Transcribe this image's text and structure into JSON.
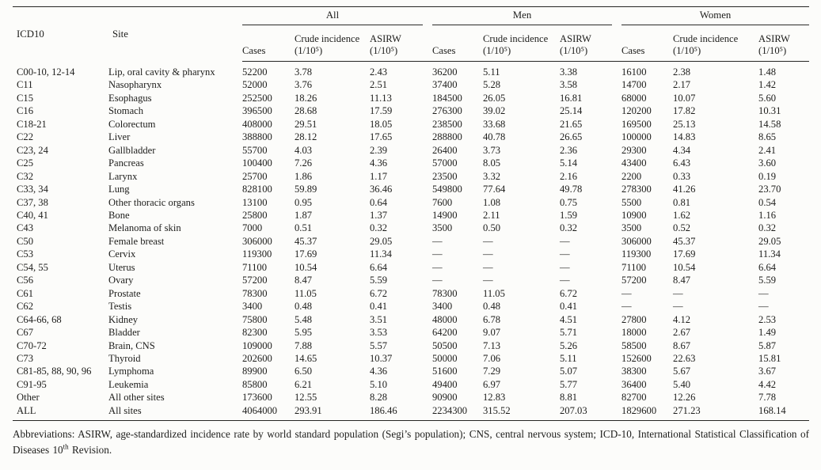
{
  "table": {
    "header": {
      "icd10": "ICD10",
      "site": "Site",
      "groups": [
        "All",
        "Men",
        "Women"
      ],
      "cases": "Cases",
      "crude_label": "Crude incidence",
      "asirw_label": "ASIRW",
      "unit": "(1/10⁵)"
    },
    "rows": [
      {
        "icd10": "C00-10, 12-14",
        "site": "Lip, oral cavity & pharynx",
        "values": [
          "52200",
          "3.78",
          "2.43",
          "36200",
          "5.11",
          "3.38",
          "16100",
          "2.38",
          "1.48"
        ]
      },
      {
        "icd10": "C11",
        "site": "Nasopharynx",
        "values": [
          "52000",
          "3.76",
          "2.51",
          "37400",
          "5.28",
          "3.58",
          "14700",
          "2.17",
          "1.42"
        ]
      },
      {
        "icd10": "C15",
        "site": "Esophagus",
        "values": [
          "252500",
          "18.26",
          "11.13",
          "184500",
          "26.05",
          "16.81",
          "68000",
          "10.07",
          "5.60"
        ]
      },
      {
        "icd10": "C16",
        "site": "Stomach",
        "values": [
          "396500",
          "28.68",
          "17.59",
          "276300",
          "39.02",
          "25.14",
          "120200",
          "17.82",
          "10.31"
        ]
      },
      {
        "icd10": "C18-21",
        "site": "Colorectum",
        "values": [
          "408000",
          "29.51",
          "18.05",
          "238500",
          "33.68",
          "21.65",
          "169500",
          "25.13",
          "14.58"
        ]
      },
      {
        "icd10": "C22",
        "site": "Liver",
        "values": [
          "388800",
          "28.12",
          "17.65",
          "288800",
          "40.78",
          "26.65",
          "100000",
          "14.83",
          "8.65"
        ]
      },
      {
        "icd10": "C23, 24",
        "site": "Gallbladder",
        "values": [
          "55700",
          "4.03",
          "2.39",
          "26400",
          "3.73",
          "2.36",
          "29300",
          "4.34",
          "2.41"
        ]
      },
      {
        "icd10": "C25",
        "site": "Pancreas",
        "values": [
          "100400",
          "7.26",
          "4.36",
          "57000",
          "8.05",
          "5.14",
          "43400",
          "6.43",
          "3.60"
        ]
      },
      {
        "icd10": "C32",
        "site": "Larynx",
        "values": [
          "25700",
          "1.86",
          "1.17",
          "23500",
          "3.32",
          "2.16",
          "2200",
          "0.33",
          "0.19"
        ]
      },
      {
        "icd10": "C33, 34",
        "site": "Lung",
        "values": [
          "828100",
          "59.89",
          "36.46",
          "549800",
          "77.64",
          "49.78",
          "278300",
          "41.26",
          "23.70"
        ]
      },
      {
        "icd10": "C37, 38",
        "site": "Other thoracic organs",
        "values": [
          "13100",
          "0.95",
          "0.64",
          "7600",
          "1.08",
          "0.75",
          "5500",
          "0.81",
          "0.54"
        ]
      },
      {
        "icd10": "C40, 41",
        "site": "Bone",
        "values": [
          "25800",
          "1.87",
          "1.37",
          "14900",
          "2.11",
          "1.59",
          "10900",
          "1.62",
          "1.16"
        ]
      },
      {
        "icd10": "C43",
        "site": "Melanoma of skin",
        "values": [
          "7000",
          "0.51",
          "0.32",
          "3500",
          "0.50",
          "0.32",
          "3500",
          "0.52",
          "0.32"
        ]
      },
      {
        "icd10": "C50",
        "site": "Female breast",
        "values": [
          "306000",
          "45.37",
          "29.05",
          "—",
          "—",
          "—",
          "306000",
          "45.37",
          "29.05"
        ]
      },
      {
        "icd10": "C53",
        "site": "Cervix",
        "values": [
          "119300",
          "17.69",
          "11.34",
          "—",
          "—",
          "—",
          "119300",
          "17.69",
          "11.34"
        ]
      },
      {
        "icd10": "C54, 55",
        "site": "Uterus",
        "values": [
          "71100",
          "10.54",
          "6.64",
          "—",
          "—",
          "—",
          "71100",
          "10.54",
          "6.64"
        ]
      },
      {
        "icd10": "C56",
        "site": "Ovary",
        "values": [
          "57200",
          "8.47",
          "5.59",
          "—",
          "—",
          "—",
          "57200",
          "8.47",
          "5.59"
        ]
      },
      {
        "icd10": "C61",
        "site": "Prostate",
        "values": [
          "78300",
          "11.05",
          "6.72",
          "78300",
          "11.05",
          "6.72",
          "—",
          "—",
          "—"
        ]
      },
      {
        "icd10": "C62",
        "site": "Testis",
        "values": [
          "3400",
          "0.48",
          "0.41",
          "3400",
          "0.48",
          "0.41",
          "—",
          "—",
          "—"
        ]
      },
      {
        "icd10": "C64-66, 68",
        "site": "Kidney",
        "values": [
          "75800",
          "5.48",
          "3.51",
          "48000",
          "6.78",
          "4.51",
          "27800",
          "4.12",
          "2.53"
        ]
      },
      {
        "icd10": "C67",
        "site": "Bladder",
        "values": [
          "82300",
          "5.95",
          "3.53",
          "64200",
          "9.07",
          "5.71",
          "18000",
          "2.67",
          "1.49"
        ]
      },
      {
        "icd10": "C70-72",
        "site": "Brain, CNS",
        "values": [
          "109000",
          "7.88",
          "5.57",
          "50500",
          "7.13",
          "5.26",
          "58500",
          "8.67",
          "5.87"
        ]
      },
      {
        "icd10": "C73",
        "site": "Thyroid",
        "values": [
          "202600",
          "14.65",
          "10.37",
          "50000",
          "7.06",
          "5.11",
          "152600",
          "22.63",
          "15.81"
        ]
      },
      {
        "icd10": "C81-85, 88, 90, 96",
        "site": "Lymphoma",
        "values": [
          "89900",
          "6.50",
          "4.36",
          "51600",
          "7.29",
          "5.07",
          "38300",
          "5.67",
          "3.67"
        ]
      },
      {
        "icd10": "C91-95",
        "site": "Leukemia",
        "values": [
          "85800",
          "6.21",
          "5.10",
          "49400",
          "6.97",
          "5.77",
          "36400",
          "5.40",
          "4.42"
        ]
      },
      {
        "icd10": "Other",
        "site": "All other sites",
        "values": [
          "173600",
          "12.55",
          "8.28",
          "90900",
          "12.83",
          "8.81",
          "82700",
          "12.26",
          "7.78"
        ]
      },
      {
        "icd10": "ALL",
        "site": "All sites",
        "values": [
          "4064000",
          "293.91",
          "186.46",
          "2234300",
          "315.52",
          "207.03",
          "1829600",
          "271.23",
          "168.14"
        ]
      }
    ]
  },
  "footnote": {
    "part1": "Abbreviations: ASIRW, age-standardized incidence rate by world standard population (Segi’s population); CNS, central nervous system; ICD-10, International Statistical Classification of Diseases 10",
    "sup": "th",
    "part2": " Revision."
  }
}
